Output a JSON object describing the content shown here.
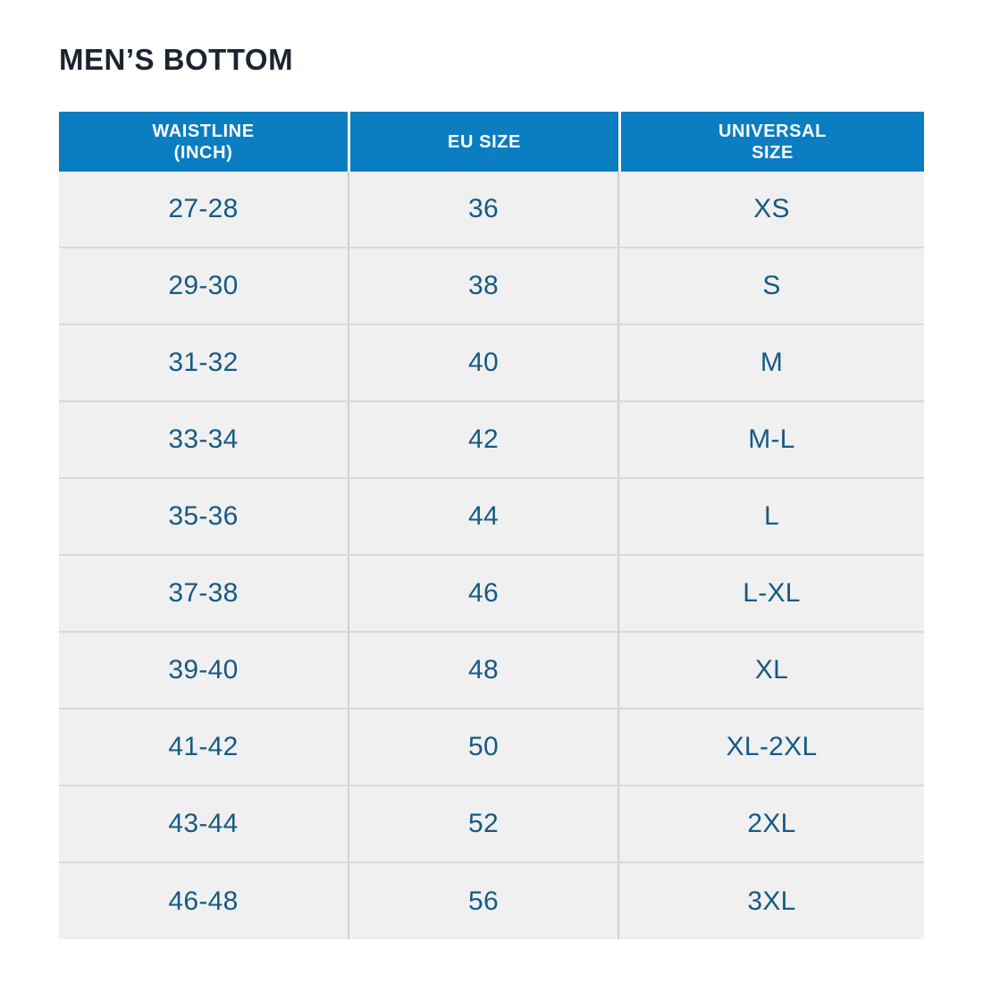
{
  "page": {
    "title": "MEN’S BOTTOM"
  },
  "styles": {
    "header_bg": "#0b7dc1",
    "header_text_color": "#ffffff",
    "row_bg": "#f0f0f1",
    "cell_text_color": "#165a84",
    "title_color": "#1b2430",
    "divider_color": "#d9d9d9"
  },
  "chart_data": {
    "type": "table",
    "title": "MEN’S BOTTOM",
    "columns": [
      "WAISTLINE (INCH)",
      "EU SIZE",
      "UNIVERSAL SIZE"
    ],
    "header_lines": [
      {
        "line1": "WAISTLINE",
        "line2": "(INCH)"
      },
      {
        "line1": "EU SIZE",
        "line2": ""
      },
      {
        "line1": "UNIVERSAL",
        "line2": "SIZE"
      }
    ],
    "rows": [
      [
        "27-28",
        "36",
        "XS"
      ],
      [
        "29-30",
        "38",
        "S"
      ],
      [
        "31-32",
        "40",
        "M"
      ],
      [
        "33-34",
        "42",
        "M-L"
      ],
      [
        "35-36",
        "44",
        "L"
      ],
      [
        "37-38",
        "46",
        "L-XL"
      ],
      [
        "39-40",
        "48",
        "XL"
      ],
      [
        "41-42",
        "50",
        "XL-2XL"
      ],
      [
        "43-44",
        "52",
        "2XL"
      ],
      [
        "46-48",
        "56",
        "3XL"
      ]
    ]
  }
}
